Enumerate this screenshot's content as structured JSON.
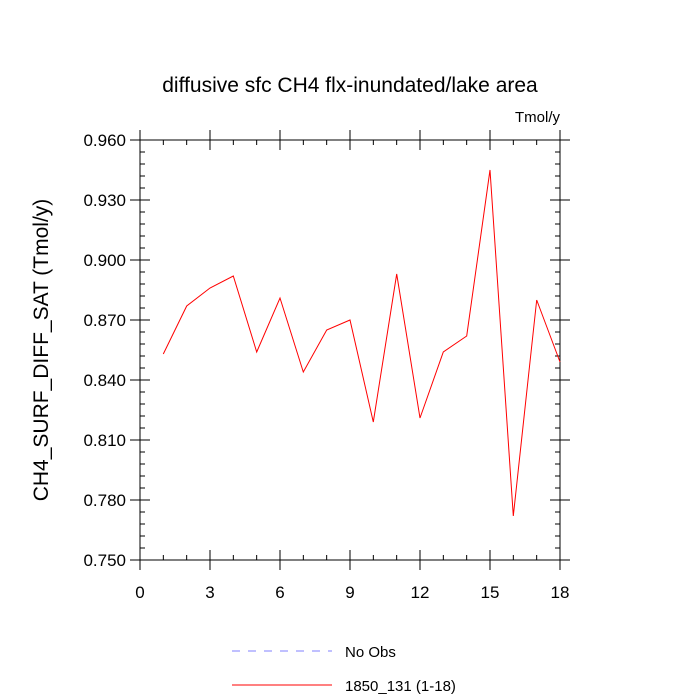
{
  "chart_data": {
    "type": "line",
    "title": "diffusive sfc CH4 flx-inundated/lake area",
    "units": "Tmol/y",
    "xlabel": "",
    "ylabel": "CH4_SURF_DIFF_SAT  (Tmol/y)",
    "xlim": [
      0,
      18
    ],
    "ylim": [
      0.75,
      0.96
    ],
    "x_ticks": [
      0,
      3,
      6,
      9,
      12,
      15,
      18
    ],
    "x_tick_labels": [
      "0",
      "3",
      "6",
      "9",
      "12",
      "15",
      "18"
    ],
    "y_ticks": [
      0.75,
      0.78,
      0.81,
      0.84,
      0.87,
      0.9,
      0.93,
      0.96
    ],
    "y_tick_labels": [
      "0.750",
      "0.780",
      "0.810",
      "0.840",
      "0.870",
      "0.900",
      "0.930",
      "0.960"
    ],
    "grid": false,
    "legend_position": "bottom",
    "series": [
      {
        "name": "1850_131 (1-18)",
        "color": "#ff0000",
        "style": "solid",
        "x": [
          1,
          2,
          3,
          4,
          5,
          6,
          7,
          8,
          9,
          10,
          11,
          12,
          13,
          14,
          15,
          16,
          17,
          18
        ],
        "y": [
          0.853,
          0.877,
          0.886,
          0.892,
          0.854,
          0.881,
          0.844,
          0.865,
          0.87,
          0.819,
          0.893,
          0.821,
          0.854,
          0.862,
          0.945,
          0.772,
          0.88,
          0.849
        ]
      }
    ],
    "legend": [
      {
        "name": "No Obs",
        "color": "#8080ff",
        "style": "dashed"
      },
      {
        "name": "1850_131 (1-18)",
        "color": "#ff0000",
        "style": "solid"
      }
    ]
  }
}
